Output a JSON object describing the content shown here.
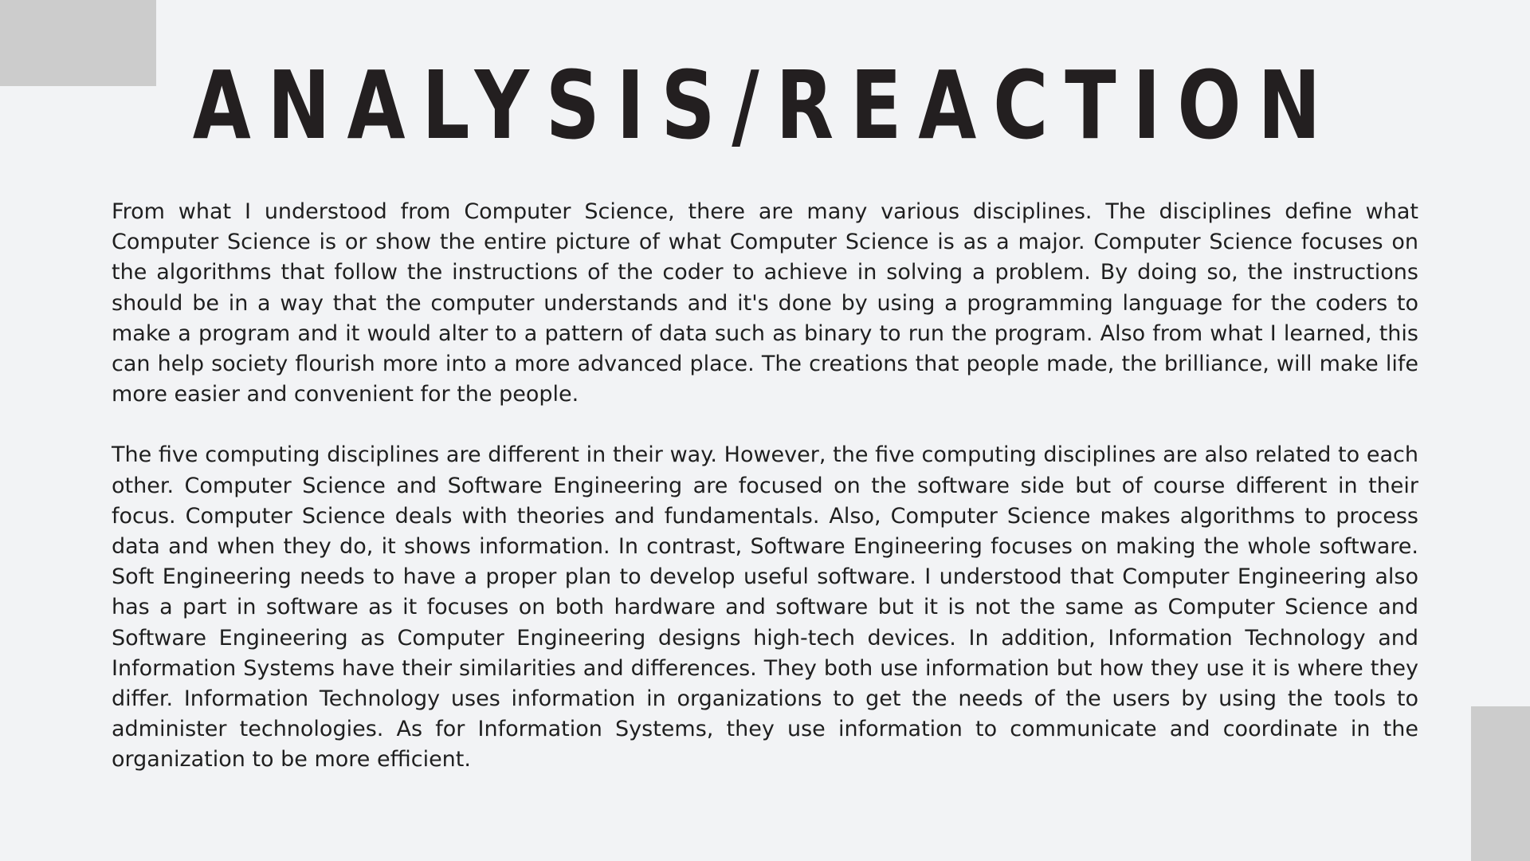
{
  "slide": {
    "title": "ANALYSIS/REACTION",
    "paragraphs": [
      "From what I understood from Computer Science, there are many various disciplines. The disciplines define what Computer Science is or show the entire picture of what Computer Science is as a major. Computer Science focuses on the algorithms that follow the instructions of the coder to achieve in solving a problem. By doing so, the instructions should be in a way that the computer understands and it's done by using a programming language for the coders to make a program and it would alter to a pattern of data such as binary to run the program. Also from what I learned, this can help society flourish more into a more advanced place. The creations that people made, the brilliance, will make life more easier and convenient for the people.",
      "The five computing disciplines are different in their way. However, the five computing disciplines are also related to each other. Computer Science and Software Engineering are focused on the software side but of course different in their focus. Computer Science deals with theories and fundamentals. Also, Computer Science makes algorithms to process data and when they do, it shows information. In contrast, Software Engineering focuses on making the whole software. Soft Engineering needs to have a proper plan to develop useful software. I understood that Computer Engineering also has a part in software as it focuses on both hardware and software but it is not the same as Computer Science and Software Engineering as Computer Engineering designs high-tech devices. In addition, Information Technology and Information Systems have their similarities and differences. They both use information but how they use it is where they differ. Information Technology uses information in organizations to get the needs of the users by using the tools to administer technologies. As for Information Systems, they use information to communicate and coordinate in the organization to be more efficient."
    ]
  },
  "colors": {
    "background": "#f2f3f5",
    "accent_block": "#cccccc",
    "title": "#231f20",
    "body_text": "#1f1f1f"
  }
}
